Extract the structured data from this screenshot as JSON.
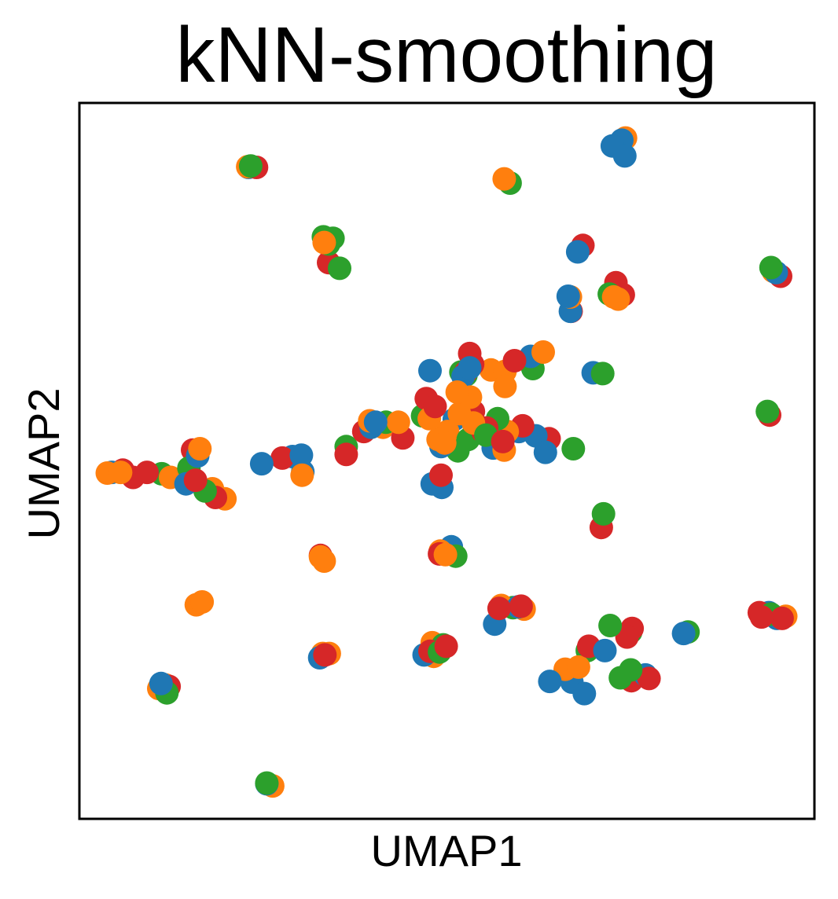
{
  "chart_data": {
    "type": "scatter",
    "title": "kNN-smoothing",
    "xlabel": "UMAP1",
    "ylabel": "UMAP2",
    "xlim": [
      0,
      100
    ],
    "ylim": [
      0,
      100
    ],
    "xticks": false,
    "yticks": false,
    "grid": false,
    "legend": "none",
    "palette": {
      "blue": "#1f77b4",
      "orange": "#ff7f0e",
      "green": "#2ca02c",
      "red": "#d62728"
    },
    "series": [
      {
        "color": "blue",
        "points": [
          [
            23.0,
            91.0
          ],
          [
            72.5,
            94.0
          ],
          [
            73.8,
            94.8
          ],
          [
            67.8,
            79.2
          ],
          [
            66.5,
            73.0
          ],
          [
            94.8,
            76.3
          ],
          [
            66.8,
            70.9
          ],
          [
            53.1,
            63.0
          ],
          [
            52.2,
            61.8
          ],
          [
            61.4,
            64.6
          ],
          [
            40.3,
            55.4
          ],
          [
            39.7,
            54.7
          ],
          [
            29.0,
            50.6
          ],
          [
            30.2,
            50.8
          ],
          [
            4.4,
            48.4
          ],
          [
            14.5,
            46.8
          ],
          [
            16.1,
            50.7
          ],
          [
            24.8,
            49.6
          ],
          [
            30.4,
            48.5
          ],
          [
            51.0,
            55.8
          ],
          [
            49.2,
            52.0
          ],
          [
            59.8,
            54.1
          ],
          [
            56.3,
            51.8
          ],
          [
            62.1,
            53.5
          ],
          [
            48.0,
            46.8
          ],
          [
            49.3,
            46.3
          ],
          [
            63.4,
            51.2
          ],
          [
            50.6,
            38.0
          ],
          [
            59.7,
            29.6
          ],
          [
            56.5,
            27.2
          ],
          [
            93.8,
            28.8
          ],
          [
            94.9,
            28.0
          ],
          [
            82.2,
            25.9
          ],
          [
            71.5,
            23.5
          ],
          [
            77.0,
            20.1
          ],
          [
            11.1,
            18.9
          ],
          [
            11.8,
            18.4
          ],
          [
            32.7,
            22.5
          ],
          [
            46.9,
            22.9
          ],
          [
            64.0,
            19.2
          ],
          [
            67.0,
            19.1
          ],
          [
            68.7,
            17.5
          ],
          [
            25.5,
            4.9
          ],
          [
            74.2,
            92.6
          ],
          [
            47.7,
            62.6
          ],
          [
            69.9,
            62.3
          ]
        ]
      },
      {
        "color": "orange",
        "points": [
          [
            22.9,
            91.1
          ],
          [
            74.3,
            95.1
          ],
          [
            57.8,
            89.4
          ],
          [
            33.3,
            80.5
          ],
          [
            66.8,
            72.9
          ],
          [
            73.3,
            72.6
          ],
          [
            94.4,
            76.5
          ],
          [
            63.1,
            65.2
          ],
          [
            53.2,
            58.9
          ],
          [
            51.4,
            59.6
          ],
          [
            47.6,
            55.9
          ],
          [
            56.0,
            62.7
          ],
          [
            57.9,
            62.5
          ],
          [
            41.3,
            54.7
          ],
          [
            39.5,
            55.6
          ],
          [
            43.4,
            55.4
          ],
          [
            3.8,
            48.3
          ],
          [
            5.6,
            48.4
          ],
          [
            12.4,
            47.7
          ],
          [
            16.4,
            51.7
          ],
          [
            18.1,
            46.1
          ],
          [
            19.8,
            44.7
          ],
          [
            30.3,
            48.0
          ],
          [
            57.9,
            60.4
          ],
          [
            53.6,
            55.3
          ],
          [
            51.7,
            56.6
          ],
          [
            49.7,
            52.5
          ],
          [
            48.8,
            53.0
          ],
          [
            48.8,
            47.1
          ],
          [
            57.8,
            51.5
          ],
          [
            56.8,
            53.1
          ],
          [
            58.2,
            54.1
          ],
          [
            32.8,
            36.6
          ],
          [
            33.3,
            36.0
          ],
          [
            15.9,
            29.9
          ],
          [
            16.7,
            30.3
          ],
          [
            49.1,
            37.4
          ],
          [
            49.8,
            36.9
          ],
          [
            57.4,
            29.8
          ],
          [
            60.5,
            29.3
          ],
          [
            96.1,
            28.3
          ],
          [
            10.8,
            18.2
          ],
          [
            11.7,
            18.7
          ],
          [
            33.1,
            23.1
          ],
          [
            34.0,
            23.1
          ],
          [
            48.2,
            22.7
          ],
          [
            48.0,
            24.6
          ],
          [
            66.1,
            20.9
          ],
          [
            67.9,
            21.2
          ],
          [
            26.3,
            4.6
          ],
          [
            72.7,
            72.9
          ],
          [
            50.1,
            54.1
          ]
        ]
      },
      {
        "color": "green",
        "points": [
          [
            23.3,
            91.2
          ],
          [
            58.6,
            88.8
          ],
          [
            33.2,
            81.3
          ],
          [
            34.5,
            81.1
          ],
          [
            35.4,
            76.9
          ],
          [
            72.1,
            73.3
          ],
          [
            94.1,
            77.0
          ],
          [
            93.6,
            56.9
          ],
          [
            71.2,
            62.2
          ],
          [
            61.7,
            62.9
          ],
          [
            51.9,
            62.4
          ],
          [
            52.6,
            62.0
          ],
          [
            41.7,
            55.4
          ],
          [
            36.3,
            52.0
          ],
          [
            46.7,
            56.3
          ],
          [
            14.9,
            49.0
          ],
          [
            17.1,
            45.8
          ],
          [
            11.2,
            48.2
          ],
          [
            55.3,
            53.6
          ],
          [
            56.9,
            55.9
          ],
          [
            67.2,
            51.7
          ],
          [
            51.5,
            51.4
          ],
          [
            52.9,
            53.0
          ],
          [
            71.3,
            42.6
          ],
          [
            51.2,
            36.7
          ],
          [
            59.0,
            29.5
          ],
          [
            75.0,
            26.1
          ],
          [
            72.2,
            27.0
          ],
          [
            82.8,
            26.1
          ],
          [
            94.1,
            28.6
          ],
          [
            75.0,
            20.8
          ],
          [
            73.6,
            19.7
          ],
          [
            11.9,
            17.6
          ],
          [
            49.5,
            24.3
          ],
          [
            49.0,
            23.3
          ],
          [
            66.9,
            19.9
          ],
          [
            25.5,
            5.0
          ],
          [
            33.9,
            80.3
          ],
          [
            69.1,
            23.5
          ]
        ]
      },
      {
        "color": "red",
        "points": [
          [
            24.1,
            91.0
          ],
          [
            68.5,
            80.1
          ],
          [
            73.0,
            74.9
          ],
          [
            74.0,
            73.2
          ],
          [
            95.4,
            75.8
          ],
          [
            66.9,
            70.9
          ],
          [
            53.1,
            65.0
          ],
          [
            53.5,
            63.5
          ],
          [
            52.6,
            62.4
          ],
          [
            59.2,
            64.0
          ],
          [
            47.2,
            58.7
          ],
          [
            48.4,
            57.6
          ],
          [
            44.0,
            53.2
          ],
          [
            38.7,
            54.1
          ],
          [
            36.3,
            50.9
          ],
          [
            5.9,
            48.7
          ],
          [
            9.2,
            48.4
          ],
          [
            7.3,
            47.7
          ],
          [
            15.8,
            47.3
          ],
          [
            18.5,
            44.9
          ],
          [
            15.4,
            51.5
          ],
          [
            27.6,
            50.4
          ],
          [
            53.6,
            56.9
          ],
          [
            53.6,
            53.8
          ],
          [
            55.4,
            54.6
          ],
          [
            57.6,
            52.7
          ],
          [
            60.3,
            54.9
          ],
          [
            54.9,
            54.1
          ],
          [
            63.9,
            53.1
          ],
          [
            49.2,
            48.0
          ],
          [
            71.0,
            40.7
          ],
          [
            32.8,
            36.8
          ],
          [
            49.0,
            37.0
          ],
          [
            57.1,
            29.4
          ],
          [
            60.1,
            29.7
          ],
          [
            75.2,
            26.6
          ],
          [
            74.5,
            25.4
          ],
          [
            95.6,
            28.0
          ],
          [
            92.5,
            28.8
          ],
          [
            92.8,
            28.2
          ],
          [
            47.7,
            23.4
          ],
          [
            49.9,
            24.1
          ],
          [
            33.4,
            22.9
          ],
          [
            12.2,
            18.5
          ],
          [
            75.1,
            19.3
          ],
          [
            77.5,
            19.6
          ],
          [
            33.9,
            77.7
          ],
          [
            69.3,
            24.1
          ],
          [
            93.9,
            56.4
          ]
        ]
      }
    ]
  }
}
